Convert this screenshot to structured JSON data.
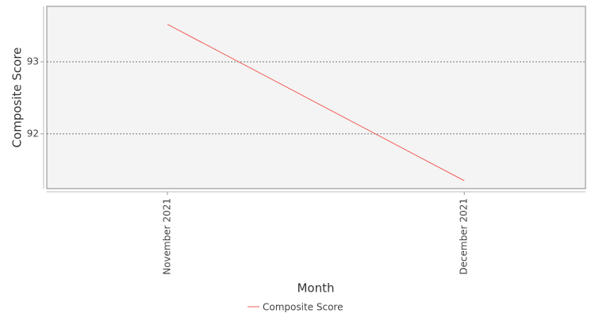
{
  "chart_data": {
    "type": "line",
    "x_label": "Month",
    "y_label": "Composite Score",
    "categories": [
      "November 2021",
      "December 2021"
    ],
    "series": [
      {
        "name": "Composite Score",
        "color": "#f0605a",
        "values": [
          93.52,
          91.35
        ]
      }
    ],
    "ylim": [
      91.24,
      93.77
    ],
    "yticks": [
      92,
      93
    ],
    "grid": true
  }
}
